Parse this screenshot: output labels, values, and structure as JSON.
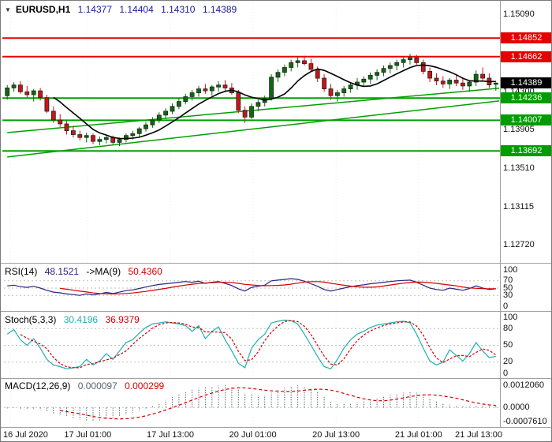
{
  "header": {
    "dropdown_icon": "▼",
    "symbol": "EURUSD,H1",
    "open": "1.14377",
    "high": "1.14404",
    "low": "1.14310",
    "close": "1.14389"
  },
  "colors": {
    "up": "#0c6b0c",
    "down": "#c81616",
    "resistance_line": "#e60000",
    "support_line": "#00a000",
    "resistance_badge": "#e60000",
    "support_badge": "#009c00",
    "price_badge": "#000000",
    "ma_line": "#000000",
    "trendline": "#00a000",
    "rsi_line": "#26267e",
    "rsi_ma_line": "#d40000",
    "stoch_k": "#1fb0b0",
    "stoch_d": "#d40000",
    "macd_hist": "#5a6478",
    "macd_signal": "#d40000",
    "ohlc_text": "#1c1c9c",
    "grid": "#ececec",
    "level_dotted": "#c0c0c0"
  },
  "chart_data": {
    "type": "candlestick",
    "symbol": "EURUSD",
    "timeframe": "H1",
    "x_ticks": [
      {
        "label": "16 Jul 2020",
        "bar": 0.5
      },
      {
        "label": "17 Jul 01:00",
        "bar": 12.2
      },
      {
        "label": "17 Jul 13:00",
        "bar": 24.7
      },
      {
        "label": "20 Jul 01:00",
        "bar": 37.2
      },
      {
        "label": "20 Jul 13:00",
        "bar": 49.8
      },
      {
        "label": "21 Jul 01:00",
        "bar": 62.3
      },
      {
        "label": "21 Jul 13:00",
        "bar": 74.5
      }
    ],
    "main": {
      "ylim": [
        1.1259,
        1.15187
      ],
      "axis_labels": [
        {
          "text": "1.15090",
          "value": 1.1509
        },
        {
          "text": "1.14300",
          "value": 1.143
        },
        {
          "text": "1.13905",
          "value": 1.13905
        },
        {
          "text": "1.13510",
          "value": 1.1351
        },
        {
          "text": "1.13115",
          "value": 1.13115
        },
        {
          "text": "1.12720",
          "value": 1.1272
        }
      ],
      "levels": [
        {
          "label": "1.14852",
          "value": 1.14852,
          "kind": "resistance"
        },
        {
          "label": "1.14662",
          "value": 1.14662,
          "kind": "resistance"
        },
        {
          "label": "1.14236",
          "value": 1.14236,
          "kind": "support"
        },
        {
          "label": "1.14007",
          "value": 1.14007,
          "kind": "support"
        },
        {
          "label": "1.13692",
          "value": 1.13692,
          "kind": "support"
        }
      ],
      "current_price": {
        "label": "1.14389",
        "value": 1.14389
      },
      "trendlines": [
        {
          "bar1": 0,
          "value1": 1.1388,
          "bar2": 75,
          "value2": 1.1434
        },
        {
          "bar1": 0,
          "value1": 1.1363,
          "bar2": 75,
          "value2": 1.1421
        }
      ],
      "ma_period": 8,
      "candles_ohlc": [
        [
          1.1426,
          1.1437,
          1.1422,
          1.1434
        ],
        [
          1.1434,
          1.144,
          1.143,
          1.1437
        ],
        [
          1.1437,
          1.1441,
          1.1428,
          1.143
        ],
        [
          1.143,
          1.1436,
          1.1424,
          1.1427
        ],
        [
          1.1427,
          1.1433,
          1.142,
          1.1431
        ],
        [
          1.1431,
          1.1434,
          1.1421,
          1.1424
        ],
        [
          1.1424,
          1.1427,
          1.1408,
          1.141
        ],
        [
          1.141,
          1.1415,
          1.1398,
          1.1401
        ],
        [
          1.1401,
          1.1407,
          1.1394,
          1.1397
        ],
        [
          1.1397,
          1.14,
          1.1386,
          1.139
        ],
        [
          1.139,
          1.1395,
          1.1383,
          1.1386
        ],
        [
          1.1386,
          1.139,
          1.138,
          1.1383
        ],
        [
          1.1383,
          1.1388,
          1.1378,
          1.1385
        ],
        [
          1.1385,
          1.1387,
          1.1376,
          1.1379
        ],
        [
          1.1379,
          1.1384,
          1.1375,
          1.1381
        ],
        [
          1.1381,
          1.1386,
          1.1377,
          1.1383
        ],
        [
          1.1383,
          1.1385,
          1.1376,
          1.1378
        ],
        [
          1.1378,
          1.1383,
          1.1374,
          1.1381
        ],
        [
          1.1381,
          1.1387,
          1.1378,
          1.1385
        ],
        [
          1.1385,
          1.139,
          1.1381,
          1.1387
        ],
        [
          1.1387,
          1.1394,
          1.1384,
          1.1392
        ],
        [
          1.1392,
          1.1399,
          1.1389,
          1.1396
        ],
        [
          1.1396,
          1.1404,
          1.1393,
          1.1401
        ],
        [
          1.1401,
          1.1409,
          1.1398,
          1.1406
        ],
        [
          1.1406,
          1.1413,
          1.1402,
          1.141
        ],
        [
          1.141,
          1.1418,
          1.1407,
          1.1415
        ],
        [
          1.1415,
          1.1423,
          1.1412,
          1.142
        ],
        [
          1.142,
          1.1428,
          1.1417,
          1.1425
        ],
        [
          1.1425,
          1.1432,
          1.1421,
          1.1429
        ],
        [
          1.1429,
          1.1436,
          1.1425,
          1.1433
        ],
        [
          1.1433,
          1.1438,
          1.1428,
          1.1431
        ],
        [
          1.1431,
          1.1437,
          1.1426,
          1.1435
        ],
        [
          1.1435,
          1.1441,
          1.143,
          1.1437
        ],
        [
          1.1437,
          1.1442,
          1.1431,
          1.1434
        ],
        [
          1.1434,
          1.1439,
          1.1427,
          1.1429
        ],
        [
          1.1429,
          1.1432,
          1.1408,
          1.1411
        ],
        [
          1.1411,
          1.1415,
          1.1398,
          1.1404
        ],
        [
          1.1404,
          1.1418,
          1.1402,
          1.1415
        ],
        [
          1.1415,
          1.1422,
          1.141,
          1.1419
        ],
        [
          1.1419,
          1.1426,
          1.1415,
          1.1423
        ],
        [
          1.1423,
          1.1448,
          1.1421,
          1.1445
        ],
        [
          1.1445,
          1.1453,
          1.144,
          1.145
        ],
        [
          1.145,
          1.1458,
          1.1446,
          1.1455
        ],
        [
          1.1455,
          1.1463,
          1.1451,
          1.146
        ],
        [
          1.146,
          1.1466,
          1.1455,
          1.1462
        ],
        [
          1.1462,
          1.1467,
          1.1457,
          1.1459
        ],
        [
          1.1459,
          1.1464,
          1.145,
          1.1453
        ],
        [
          1.1453,
          1.1456,
          1.144,
          1.1444
        ],
        [
          1.1444,
          1.1448,
          1.143,
          1.1433
        ],
        [
          1.1433,
          1.1438,
          1.1422,
          1.1426
        ],
        [
          1.1426,
          1.1432,
          1.142,
          1.1429
        ],
        [
          1.1429,
          1.1436,
          1.1425,
          1.1433
        ],
        [
          1.1433,
          1.144,
          1.1429,
          1.1437
        ],
        [
          1.1437,
          1.1444,
          1.1432,
          1.144
        ],
        [
          1.144,
          1.1446,
          1.1435,
          1.1443
        ],
        [
          1.1443,
          1.145,
          1.1438,
          1.1447
        ],
        [
          1.1447,
          1.1453,
          1.1442,
          1.145
        ],
        [
          1.145,
          1.1457,
          1.1446,
          1.1454
        ],
        [
          1.1454,
          1.146,
          1.1449,
          1.1457
        ],
        [
          1.1457,
          1.1463,
          1.1452,
          1.146
        ],
        [
          1.146,
          1.1466,
          1.1455,
          1.1463
        ],
        [
          1.1463,
          1.1469,
          1.1458,
          1.1465
        ],
        [
          1.1465,
          1.1468,
          1.1458,
          1.146
        ],
        [
          1.146,
          1.1463,
          1.1448,
          1.1451
        ],
        [
          1.1451,
          1.1455,
          1.144,
          1.1444
        ],
        [
          1.1444,
          1.1449,
          1.1437,
          1.1441
        ],
        [
          1.1441,
          1.1446,
          1.1434,
          1.1438
        ],
        [
          1.1438,
          1.1444,
          1.1433,
          1.1442
        ],
        [
          1.1442,
          1.1447,
          1.1436,
          1.1439
        ],
        [
          1.1439,
          1.1445,
          1.1432,
          1.1436
        ],
        [
          1.1436,
          1.1442,
          1.143,
          1.144
        ],
        [
          1.144,
          1.1452,
          1.1436,
          1.1448
        ],
        [
          1.1448,
          1.1455,
          1.1441,
          1.1444
        ],
        [
          1.1444,
          1.1449,
          1.1434,
          1.1437
        ],
        [
          1.14377,
          1.14404,
          1.1431,
          1.14389
        ]
      ]
    },
    "rsi": {
      "header_name": "RSI(14)",
      "value": "48.1521",
      "ma_label": "->MA(9)",
      "ma_value": "50.4360",
      "ylim": [
        0,
        100
      ],
      "axis_labels": [
        {
          "text": "100",
          "value": 100
        },
        {
          "text": "70",
          "value": 70
        },
        {
          "text": "50",
          "value": 50
        },
        {
          "text": "30",
          "value": 30
        },
        {
          "text": "0",
          "value": 0
        }
      ],
      "dotted_levels": [
        70,
        50,
        30
      ],
      "ma_period": 9,
      "values": [
        56,
        58,
        54,
        52,
        55,
        50,
        44,
        39,
        37,
        34,
        32,
        30,
        34,
        31,
        34,
        38,
        35,
        39,
        43,
        45,
        49,
        53,
        57,
        60,
        62,
        64,
        66,
        68,
        66,
        69,
        63,
        66,
        68,
        63,
        57,
        48,
        42,
        52,
        55,
        58,
        70,
        72,
        74,
        76,
        74,
        69,
        62,
        55,
        46,
        42,
        46,
        50,
        54,
        57,
        59,
        62,
        64,
        66,
        68,
        70,
        71,
        72,
        66,
        58,
        50,
        46,
        44,
        50,
        47,
        44,
        49,
        56,
        50,
        46,
        48.15
      ]
    },
    "stoch": {
      "header_name": "Stoch(5,3,3)",
      "k_value": "30.4196",
      "d_value": "36.9379",
      "ylim": [
        0,
        100
      ],
      "axis_labels": [
        {
          "text": "100",
          "value": 100
        },
        {
          "text": "80",
          "value": 80
        },
        {
          "text": "50",
          "value": 50
        },
        {
          "text": "20",
          "value": 20
        },
        {
          "text": "0",
          "value": 0
        }
      ],
      "dotted_levels": [
        80,
        50,
        20
      ],
      "d_period": 3,
      "k_values": [
        70,
        78,
        60,
        50,
        62,
        45,
        25,
        15,
        12,
        8,
        10,
        12,
        25,
        15,
        22,
        35,
        25,
        40,
        55,
        60,
        72,
        82,
        88,
        90,
        92,
        90,
        88,
        85,
        75,
        85,
        62,
        75,
        83,
        60,
        40,
        18,
        10,
        45,
        60,
        70,
        90,
        93,
        95,
        94,
        88,
        70,
        50,
        30,
        12,
        8,
        25,
        45,
        60,
        70,
        75,
        82,
        86,
        88,
        90,
        92,
        93,
        90,
        70,
        45,
        22,
        15,
        20,
        42,
        32,
        22,
        35,
        55,
        40,
        28,
        30.42
      ]
    },
    "macd": {
      "header_name": "MACD(12,26,9)",
      "macd_value": "0.000097",
      "signal_value": "0.000299",
      "ylim": [
        -0.000761,
        0.001206
      ],
      "axis_labels": [
        {
          "text": "0.0012060",
          "value": 0.001206
        },
        {
          "text": "0.0000",
          "value": 0
        },
        {
          "text": "-0.0007610",
          "value": -0.000761
        }
      ],
      "signal_period": 9,
      "values": [
        -5e-05,
        -2e-05,
        -8e-05,
        -0.00012,
        -0.0001,
        -0.00015,
        -0.00025,
        -0.00035,
        -0.00042,
        -0.0005,
        -0.00058,
        -0.00066,
        -0.00072,
        -0.00076,
        -0.0007,
        -0.00062,
        -0.00056,
        -0.0005,
        -0.0004,
        -0.0003,
        -0.00018,
        -6e-05,
        8e-05,
        0.00024,
        0.0004,
        0.00056,
        0.00072,
        0.00086,
        0.00096,
        0.00105,
        0.00108,
        0.00112,
        0.00118,
        0.00121,
        0.00115,
        0.00098,
        0.00078,
        0.0007,
        0.00066,
        0.00066,
        0.0008,
        0.00094,
        0.00106,
        0.00116,
        0.0012,
        0.00116,
        0.00104,
        0.00086,
        0.00062,
        0.00038,
        0.00024,
        0.0002,
        0.00022,
        0.00028,
        0.00036,
        0.00044,
        0.00052,
        0.0006,
        0.00068,
        0.00074,
        0.0008,
        0.00084,
        0.0008,
        0.00068,
        0.0005,
        0.00034,
        0.00022,
        0.00016,
        0.00012,
        6e-05,
        4e-05,
        0.0001,
        0.00012,
        8e-05,
        9.7e-05
      ]
    }
  }
}
